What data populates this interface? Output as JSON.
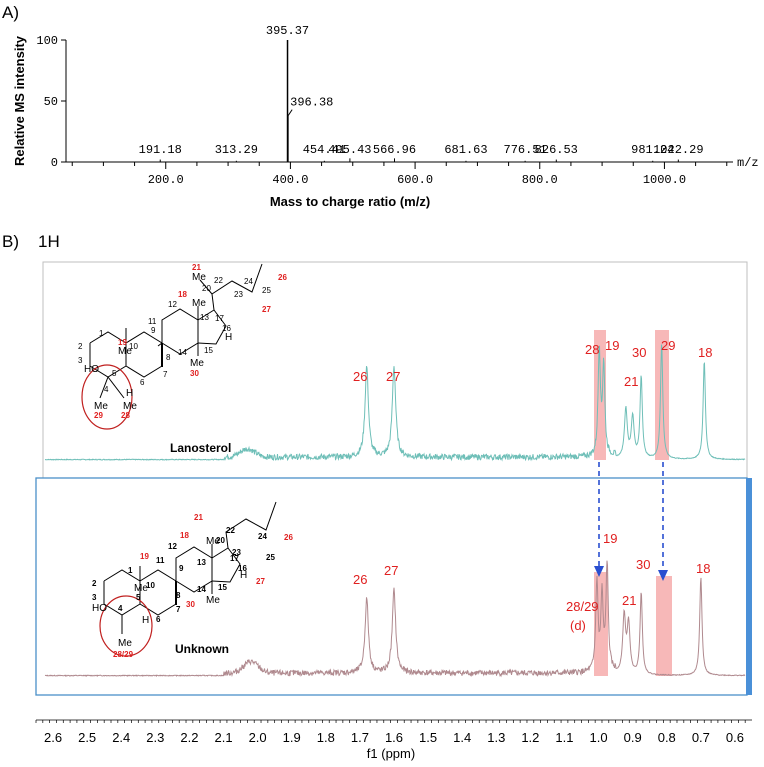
{
  "chart_data": [
    {
      "type": "bar",
      "panel_label": "A)",
      "xlabel": "Mass to charge ratio (m/z)",
      "ylabel": "Relative MS intensity",
      "unit_label": "m/z",
      "xlim": [
        40,
        1110
      ],
      "ylim": [
        0,
        100
      ],
      "x_ticks": [
        "200.0",
        "400.0",
        "600.0",
        "800.0",
        "1000.0"
      ],
      "y_ticks": [
        "0",
        "50",
        "100"
      ],
      "peaks": [
        {
          "x": 191.18,
          "y": 2,
          "label": "191.18"
        },
        {
          "x": 313.29,
          "y": 1,
          "label": "313.29"
        },
        {
          "x": 395.37,
          "y": 100,
          "label": "395.37"
        },
        {
          "x": 396.38,
          "y": 38,
          "label": "396.38"
        },
        {
          "x": 454.41,
          "y": 1,
          "label": "454.41"
        },
        {
          "x": 495.43,
          "y": 3,
          "label": "495.43"
        },
        {
          "x": 566.96,
          "y": 3,
          "label": "566.96"
        },
        {
          "x": 681.63,
          "y": 1,
          "label": "681.63"
        },
        {
          "x": 776.51,
          "y": 1,
          "label": "776.51"
        },
        {
          "x": 826.53,
          "y": 2,
          "label": "826.53"
        },
        {
          "x": 981.24,
          "y": 1,
          "label": "981.24"
        },
        {
          "x": 1022.29,
          "y": 2,
          "label": "1022.29"
        }
      ]
    },
    {
      "type": "line",
      "panel_label": "B)",
      "nucleus": "1H",
      "xlabel": "f1 (ppm)",
      "x_reversed": true,
      "xlim": [
        2.65,
        0.55
      ],
      "x_ticks": [
        "2.6",
        "2.5",
        "2.4",
        "2.3",
        "2.2",
        "2.1",
        "2.0",
        "1.9",
        "1.8",
        "1.7",
        "1.6",
        "1.5",
        "1.4",
        "1.3",
        "1.2",
        "1.1",
        "1.0",
        "0.9",
        "0.8",
        "0.7",
        "0.6"
      ],
      "series": [
        {
          "name": "Lanosterol",
          "color": "#6fbfb8",
          "peaks": [
            {
              "x": 2.03,
              "y": 0.05,
              "w": 0.03
            },
            {
              "x": 1.68,
              "y": 0.55,
              "w": 0.006,
              "label": "26"
            },
            {
              "x": 1.6,
              "y": 0.55,
              "w": 0.006,
              "label": "27"
            },
            {
              "x": 0.998,
              "y": 0.65,
              "w": 0.004,
              "label": "28"
            },
            {
              "x": 0.985,
              "y": 0.55,
              "w": 0.004,
              "label": "19"
            },
            {
              "x": 0.92,
              "y": 0.3,
              "w": 0.005,
              "label": "21"
            },
            {
              "x": 0.9,
              "y": 0.25,
              "w": 0.005
            },
            {
              "x": 0.875,
              "y": 0.5,
              "w": 0.004,
              "label": "30"
            },
            {
              "x": 0.815,
              "y": 0.7,
              "w": 0.004,
              "label": "29"
            },
            {
              "x": 0.69,
              "y": 0.6,
              "w": 0.004,
              "label": "18"
            }
          ]
        },
        {
          "name": "Unknown",
          "color": "#b08a8f",
          "peaks": [
            {
              "x": 2.02,
              "y": 0.07,
              "w": 0.03
            },
            {
              "x": 1.68,
              "y": 0.45,
              "w": 0.006,
              "label": "26"
            },
            {
              "x": 1.6,
              "y": 0.5,
              "w": 0.006,
              "label": "27"
            },
            {
              "x": 1.005,
              "y": 0.55,
              "w": 0.004
            },
            {
              "x": 0.99,
              "y": 0.45,
              "w": 0.004,
              "label": "28/29"
            },
            {
              "x": 0.975,
              "y": 0.65,
              "w": 0.004,
              "label": "19"
            },
            {
              "x": 0.925,
              "y": 0.35,
              "w": 0.005,
              "label": "21"
            },
            {
              "x": 0.912,
              "y": 0.3,
              "w": 0.005
            },
            {
              "x": 0.875,
              "y": 0.5,
              "w": 0.004,
              "label": "30"
            },
            {
              "x": 0.7,
              "y": 0.6,
              "w": 0.004,
              "label": "18"
            }
          ]
        }
      ],
      "annotations": {
        "lanosterol_peak_labels": [
          "26",
          "27",
          "28",
          "19",
          "30",
          "21",
          "29",
          "18"
        ],
        "unknown_peak_labels": [
          "26",
          "27",
          "19",
          "28/29",
          "(d)",
          "21",
          "30",
          "18"
        ]
      }
    }
  ],
  "structures": {
    "lanosterol": {
      "name": "Lanosterol",
      "ring_numbers": [
        "1",
        "2",
        "3",
        "4",
        "5",
        "6",
        "7",
        "8",
        "9",
        "10",
        "11",
        "12",
        "13",
        "14",
        "15",
        "16",
        "17",
        "20",
        "22",
        "23",
        "24",
        "25"
      ],
      "red_labels": [
        "21",
        "18",
        "19",
        "26",
        "27",
        "30",
        "29",
        "28"
      ],
      "groups": [
        "HO",
        "Me",
        "Me",
        "Me",
        "Me",
        "Me",
        "Me",
        "H",
        "H"
      ]
    },
    "unknown": {
      "name": "Unknown",
      "ring_numbers": [
        "1",
        "2",
        "3",
        "4",
        "5",
        "6",
        "7",
        "8",
        "9",
        "10",
        "11",
        "12",
        "13",
        "14",
        "15",
        "16",
        "17",
        "20",
        "22",
        "23",
        "24",
        "25"
      ],
      "red_labels": [
        "21",
        "18",
        "19",
        "26",
        "27",
        "30",
        "28/29"
      ],
      "groups": [
        "HO",
        "Me",
        "Me",
        "Me",
        "Me",
        "H",
        "H"
      ]
    }
  },
  "colors": {
    "axis": "#000000",
    "nmr_frame": "#bfbfbf",
    "unknown_frame": "#4a90c8",
    "highlight": "#f4a0a0",
    "red": "#e02020",
    "arrow": "#2a4fd0",
    "right_bar": "#4a90d8"
  }
}
